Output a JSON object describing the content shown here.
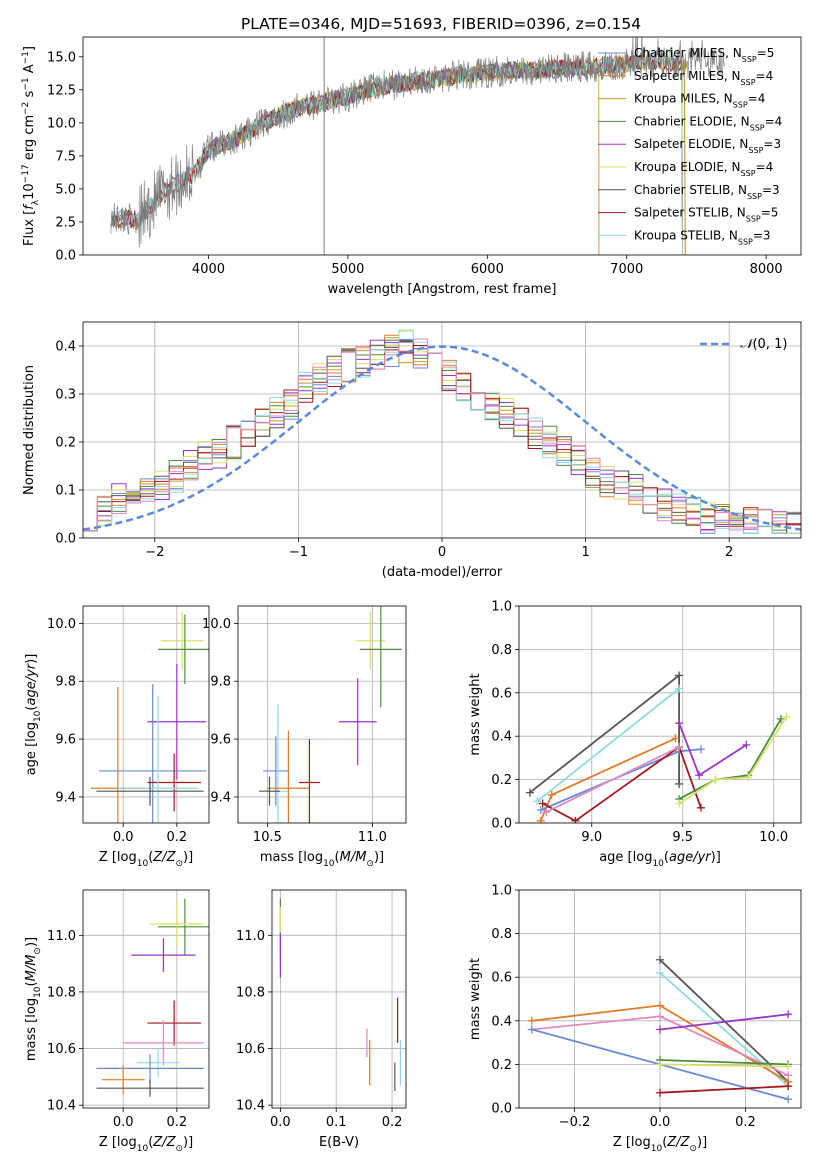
{
  "figure": {
    "title": "PLATE=0346, MJD=51693, FIBERID=0396, z=0.154"
  },
  "colors": {
    "Chabrier MILES": "#6a8bd6",
    "Salpeter MILES": "#e07b29",
    "Kroupa MILES": "#c99a2e",
    "Chabrier ELODIE": "#4d8c3f",
    "Salpeter ELODIE": "#9a36c4",
    "Kroupa ELODIE": "#d8e26a",
    "Chabrier STELIB": "#555555",
    "Salpeter STELIB": "#a5191e",
    "Kroupa STELIB": "#8fdce0",
    "pink": "#e28ac0",
    "normal": "#5b8ad6"
  },
  "chart_data": [
    {
      "id": "spectrum",
      "type": "line",
      "title": "PLATE=0346, MJD=51693, FIBERID=0396, z=0.154",
      "xlabel": "wavelength [Angstrom, rest frame]",
      "ylabel": "Flux [f_λ 10^-17 erg cm^-2 s^-1 A^-1]",
      "xlim": [
        3100,
        8250
      ],
      "ylim": [
        0,
        16.5
      ],
      "xticks": [
        4000,
        5000,
        6000,
        7000,
        8000
      ],
      "yticks": [
        0.0,
        2.5,
        5.0,
        7.5,
        10.0,
        12.5,
        15.0
      ],
      "grid": false,
      "legend_position": "top-right",
      "legend": [
        {
          "label": "Chabrier MILES, N",
          "sub": "SSP",
          "val": "=5",
          "color": "#6a8bd6"
        },
        {
          "label": "Salpeter MILES, N",
          "sub": "SSP",
          "val": "=4",
          "color": "#e07b29"
        },
        {
          "label": "Kroupa MILES, N",
          "sub": "SSP",
          "val": "=4",
          "color": "#c99a2e"
        },
        {
          "label": "Chabrier ELODIE, N",
          "sub": "SSP",
          "val": "=4",
          "color": "#4d8c3f"
        },
        {
          "label": "Salpeter ELODIE, N",
          "sub": "SSP",
          "val": "=3",
          "color": "#9a36c4"
        },
        {
          "label": "Kroupa ELODIE, N",
          "sub": "SSP",
          "val": "=4",
          "color": "#d8e26a"
        },
        {
          "label": "Chabrier STELIB, N",
          "sub": "SSP",
          "val": "=3",
          "color": "#555555"
        },
        {
          "label": "Salpeter STELIB, N",
          "sub": "SSP",
          "val": "=5",
          "color": "#a5191e"
        },
        {
          "label": "Kroupa STELIB, N",
          "sub": "SSP",
          "val": "=3",
          "color": "#8fdce0"
        }
      ],
      "continuum": {
        "x": [
          3300,
          3500,
          3700,
          3900,
          4000,
          4200,
          4400,
          4600,
          4800,
          5000,
          5200,
          5400,
          5600,
          5800,
          6000,
          6200,
          6400,
          6600,
          6800,
          7000,
          7200,
          7400
        ],
        "y": [
          2.8,
          2.7,
          5.0,
          6.2,
          8.0,
          8.8,
          10.0,
          11.0,
          11.5,
          12.0,
          12.7,
          13.0,
          13.3,
          13.6,
          13.8,
          14.0,
          14.0,
          14.2,
          14.3,
          14.5,
          14.7,
          14.5
        ]
      },
      "model_ranges": [
        {
          "model": "Chabrier MILES",
          "x": [
            3300,
            7400
          ]
        },
        {
          "model": "Salpeter MILES",
          "x": [
            3300,
            7420
          ]
        },
        {
          "model": "Kroupa MILES",
          "x": [
            3920,
            7420
          ]
        },
        {
          "model": "Chabrier ELODIE",
          "x": [
            3900,
            6800
          ]
        },
        {
          "model": "Salpeter ELODIE",
          "x": [
            3900,
            6800
          ]
        },
        {
          "model": "Kroupa ELODIE",
          "x": [
            3900,
            6800
          ]
        },
        {
          "model": "Chabrier STELIB",
          "x": [
            3300,
            7400
          ]
        },
        {
          "model": "Salpeter STELIB",
          "x": [
            3300,
            7400
          ]
        },
        {
          "model": "Kroupa STELIB",
          "x": [
            3300,
            7400
          ]
        }
      ],
      "spikes": [
        {
          "x": 4830,
          "y": 16.5
        }
      ]
    },
    {
      "id": "residuals",
      "type": "histogram",
      "xlabel": "(data-model)/error",
      "ylabel": "Normed distribution",
      "xlim": [
        -2.5,
        2.5
      ],
      "ylim": [
        0,
        0.45
      ],
      "xticks": [
        -2,
        -1,
        0,
        1,
        2
      ],
      "yticks": [
        0.0,
        0.1,
        0.2,
        0.3,
        0.4
      ],
      "grid": true,
      "legend_position": "top-right",
      "legend": [
        {
          "label": "𝒩(0, 1)",
          "style": "dashed",
          "color": "#5b8ad6"
        }
      ],
      "bin_width": 0.1,
      "profile": [
        0.05,
        0.06,
        0.08,
        0.09,
        0.1,
        0.11,
        0.13,
        0.15,
        0.17,
        0.18,
        0.2,
        0.22,
        0.24,
        0.26,
        0.28,
        0.31,
        0.33,
        0.35,
        0.36,
        0.37,
        0.38,
        0.39,
        0.4,
        0.38,
        0.36,
        0.34,
        0.31,
        0.29,
        0.28,
        0.26,
        0.24,
        0.22,
        0.2,
        0.18,
        0.16,
        0.14,
        0.12,
        0.11,
        0.1,
        0.08,
        0.07,
        0.06,
        0.05,
        0.04,
        0.04,
        0.03,
        0.03,
        0.03,
        0.02,
        0.02
      ],
      "normal": {
        "mu": 0,
        "sigma": 1
      }
    },
    {
      "id": "age_vs_Z",
      "type": "errorbar",
      "xlabel": "Z [log10(Z/Z☉)]",
      "ylabel": "age [log10(age/yr)]",
      "xlim": [
        -0.15,
        0.32
      ],
      "ylim": [
        9.31,
        10.06
      ],
      "xticks": [
        0.0,
        0.2
      ],
      "yticks": [
        9.4,
        9.6,
        9.8,
        10.0
      ],
      "grid": true,
      "points": [
        {
          "model": "Kroupa ELODIE",
          "x": 0.22,
          "y": 9.94,
          "xerr": 0.08,
          "yerr": 0.1
        },
        {
          "model": "Chabrier ELODIE",
          "x": 0.23,
          "y": 9.91,
          "xerr": 0.1,
          "yerr": 0.12
        },
        {
          "model": "Salpeter ELODIE",
          "x": 0.2,
          "y": 9.66,
          "xerr": 0.11,
          "yerr": 0.2
        },
        {
          "model": "Chabrier MILES",
          "x": 0.11,
          "y": 9.49,
          "xerr": 0.2,
          "yerr": 0.3
        },
        {
          "model": "Salpeter STELIB",
          "x": 0.19,
          "y": 9.45,
          "xerr": 0.1,
          "yerr": 0.1
        },
        {
          "model": "Salpeter MILES",
          "x": -0.02,
          "y": 9.43,
          "xerr": 0.1,
          "yerr": 0.35
        },
        {
          "model": "Kroupa STELIB",
          "x": 0.13,
          "y": 9.43,
          "xerr": 0.15,
          "yerr": 0.32
        },
        {
          "model": "Chabrier STELIB",
          "x": 0.1,
          "y": 9.42,
          "xerr": 0.2,
          "yerr": 0.05
        }
      ]
    },
    {
      "id": "age_vs_mass",
      "type": "errorbar",
      "xlabel": "mass [log10(M/M☉)]",
      "ylabel": "",
      "xlim": [
        10.36,
        11.16
      ],
      "ylim": [
        9.31,
        10.06
      ],
      "xticks": [
        10.5,
        11.0
      ],
      "yticks": [
        9.4,
        9.6,
        9.8,
        10.0
      ],
      "grid": true,
      "points": [
        {
          "model": "Kroupa ELODIE",
          "x": 10.99,
          "y": 9.94,
          "xerr": 0.07,
          "yerr": 0.1
        },
        {
          "model": "Chabrier ELODIE",
          "x": 11.04,
          "y": 9.91,
          "xerr": 0.1,
          "yerr": 0.2
        },
        {
          "model": "Salpeter ELODIE",
          "x": 10.93,
          "y": 9.66,
          "xerr": 0.09,
          "yerr": 0.15
        },
        {
          "model": "Chabrier MILES",
          "x": 10.54,
          "y": 9.49,
          "xerr": 0.06,
          "yerr": 0.12
        },
        {
          "model": "Salpeter STELIB",
          "x": 10.7,
          "y": 9.45,
          "xerr": 0.05,
          "yerr": 0.15
        },
        {
          "model": "Kroupa STELIB",
          "x": 10.55,
          "y": 9.42,
          "xerr": 0.05,
          "yerr": 0.3
        },
        {
          "model": "Salpeter MILES",
          "x": 10.6,
          "y": 9.43,
          "xerr": 0.1,
          "yerr": 0.2
        },
        {
          "model": "Chabrier STELIB",
          "x": 10.51,
          "y": 9.42,
          "xerr": 0.05,
          "yerr": 0.05
        }
      ]
    },
    {
      "id": "weight_vs_age",
      "type": "line",
      "xlabel": "age [log10(age/yr)]",
      "ylabel": "mass weight",
      "xlim": [
        8.6,
        10.15
      ],
      "ylim": [
        0,
        1
      ],
      "xticks": [
        9.0,
        9.5,
        10.0
      ],
      "yticks": [
        0.0,
        0.2,
        0.4,
        0.6,
        0.8,
        1.0
      ],
      "grid": true,
      "series": [
        {
          "model": "Chabrier STELIB",
          "x": [
            8.66,
            9.48,
            9.48
          ],
          "y": [
            0.14,
            0.68,
            0.18
          ]
        },
        {
          "model": "Kroupa STELIB",
          "x": [
            8.7,
            9.48
          ],
          "y": [
            0.1,
            0.62
          ]
        },
        {
          "model": "Salpeter MILES",
          "x": [
            8.72,
            8.78,
            9.46
          ],
          "y": [
            0.01,
            0.13,
            0.39
          ]
        },
        {
          "model": "Chabrier MILES",
          "x": [
            8.72,
            9.48,
            9.6
          ],
          "y": [
            0.06,
            0.33,
            0.34
          ]
        },
        {
          "model": "Salpeter STELIB",
          "x": [
            8.73,
            8.91,
            9.48,
            9.6
          ],
          "y": [
            0.09,
            0.01,
            0.35,
            0.07
          ]
        },
        {
          "model": "Salpeter ELODIE",
          "x": [
            9.48,
            9.59,
            9.85
          ],
          "y": [
            0.46,
            0.22,
            0.36
          ]
        },
        {
          "model": "Chabrier ELODIE",
          "x": [
            9.48,
            9.68,
            9.86,
            10.04
          ],
          "y": [
            0.11,
            0.2,
            0.22,
            0.48
          ]
        },
        {
          "model": "Kroupa ELODIE",
          "x": [
            9.48,
            9.68,
            9.86,
            10.07
          ],
          "y": [
            0.09,
            0.2,
            0.21,
            0.49
          ]
        },
        {
          "model": "pink",
          "x": [
            8.75,
            9.48
          ],
          "y": [
            0.05,
            0.35
          ]
        }
      ]
    },
    {
      "id": "mass_vs_Z",
      "type": "errorbar",
      "xlabel": "Z [log10(Z/Z☉)]",
      "ylabel": "mass [log10(M/M☉)]",
      "xlim": [
        -0.15,
        0.32
      ],
      "ylim": [
        10.39,
        11.16
      ],
      "xticks": [
        0.0,
        0.2
      ],
      "yticks": [
        10.4,
        10.6,
        10.8,
        11.0
      ],
      "grid": true,
      "points": [
        {
          "model": "Chabrier ELODIE",
          "x": 0.23,
          "y": 11.03,
          "xerr": 0.1,
          "yerr": 0.1
        },
        {
          "model": "Kroupa ELODIE",
          "x": 0.2,
          "y": 11.04,
          "xerr": 0.1,
          "yerr": 0.08
        },
        {
          "model": "Salpeter ELODIE",
          "x": 0.15,
          "y": 10.93,
          "xerr": 0.12,
          "yerr": 0.06
        },
        {
          "model": "Salpeter STELIB",
          "x": 0.19,
          "y": 10.69,
          "xerr": 0.1,
          "yerr": 0.08
        },
        {
          "model": "pink",
          "x": 0.15,
          "y": 10.62,
          "xerr": 0.15,
          "yerr": 0.08
        },
        {
          "model": "Kroupa STELIB",
          "x": 0.13,
          "y": 10.55,
          "xerr": 0.08,
          "yerr": 0.05
        },
        {
          "model": "Chabrier MILES",
          "x": 0.1,
          "y": 10.53,
          "xerr": 0.2,
          "yerr": 0.05
        },
        {
          "model": "Salpeter MILES",
          "x": 0.0,
          "y": 10.49,
          "xerr": 0.08,
          "yerr": 0.05
        },
        {
          "model": "Chabrier STELIB",
          "x": 0.1,
          "y": 10.46,
          "xerr": 0.2,
          "yerr": 0.03
        }
      ]
    },
    {
      "id": "mass_vs_ebv",
      "type": "errorbar",
      "xlabel": "E(B-V)",
      "ylabel": "",
      "xlim": [
        -0.015,
        0.225
      ],
      "ylim": [
        10.39,
        11.16
      ],
      "xticks": [
        0.0,
        0.1,
        0.2
      ],
      "yticks": [
        10.4,
        10.6,
        10.8,
        11.0
      ],
      "grid": true,
      "points": [
        {
          "model": "Chabrier ELODIE",
          "x": 0.0,
          "y": 11.03,
          "xerr": 0.0,
          "yerr": 0.1
        },
        {
          "model": "Kroupa ELODIE",
          "x": 0.0,
          "y": 11.0,
          "xerr": 0.0,
          "yerr": 0.1
        },
        {
          "model": "Salpeter ELODIE",
          "x": 0.0,
          "y": 10.93,
          "xerr": 0.0,
          "yerr": 0.08
        },
        {
          "model": "pink",
          "x": 0.155,
          "y": 10.62,
          "xerr": 0.0,
          "yerr": 0.05
        },
        {
          "model": "Salpeter MILES",
          "x": 0.16,
          "y": 10.55,
          "xerr": 0.0,
          "yerr": 0.08
        },
        {
          "model": "Salpeter STELIB",
          "x": 0.21,
          "y": 10.7,
          "xerr": 0.0,
          "yerr": 0.08
        },
        {
          "model": "Kroupa STELIB",
          "x": 0.215,
          "y": 10.55,
          "xerr": 0.0,
          "yerr": 0.08
        },
        {
          "model": "Chabrier STELIB",
          "x": 0.205,
          "y": 10.5,
          "xerr": 0.0,
          "yerr": 0.05
        }
      ]
    },
    {
      "id": "weight_vs_Z",
      "type": "line",
      "xlabel": "Z [log10(Z/Z☉)]",
      "ylabel": "mass weight",
      "xlim": [
        -0.33,
        0.33
      ],
      "ylim": [
        0,
        1
      ],
      "xticks": [
        -0.2,
        0.0,
        0.2
      ],
      "yticks": [
        0.0,
        0.2,
        0.4,
        0.6,
        0.8,
        1.0
      ],
      "grid": true,
      "series": [
        {
          "model": "Chabrier STELIB",
          "x": [
            0.0,
            0.3
          ],
          "y": [
            0.68,
            0.12
          ]
        },
        {
          "model": "Kroupa STELIB",
          "x": [
            0.0,
            0.3
          ],
          "y": [
            0.62,
            0.1
          ]
        },
        {
          "model": "Salpeter MILES",
          "x": [
            -0.3,
            0.0,
            0.3
          ],
          "y": [
            0.4,
            0.47,
            0.12
          ]
        },
        {
          "model": "pink",
          "x": [
            -0.3,
            0.0,
            0.3
          ],
          "y": [
            0.36,
            0.42,
            0.15
          ]
        },
        {
          "model": "Chabrier MILES",
          "x": [
            -0.3,
            0.0,
            0.3
          ],
          "y": [
            0.36,
            0.2,
            0.04
          ]
        },
        {
          "model": "Salpeter ELODIE",
          "x": [
            0.0,
            0.3
          ],
          "y": [
            0.36,
            0.43
          ]
        },
        {
          "model": "Chabrier ELODIE",
          "x": [
            0.0,
            0.3
          ],
          "y": [
            0.22,
            0.2
          ]
        },
        {
          "model": "Kroupa ELODIE",
          "x": [
            0.0,
            0.3
          ],
          "y": [
            0.2,
            0.19
          ]
        },
        {
          "model": "Salpeter STELIB",
          "x": [
            0.0,
            0.3
          ],
          "y": [
            0.07,
            0.1
          ]
        }
      ]
    }
  ]
}
